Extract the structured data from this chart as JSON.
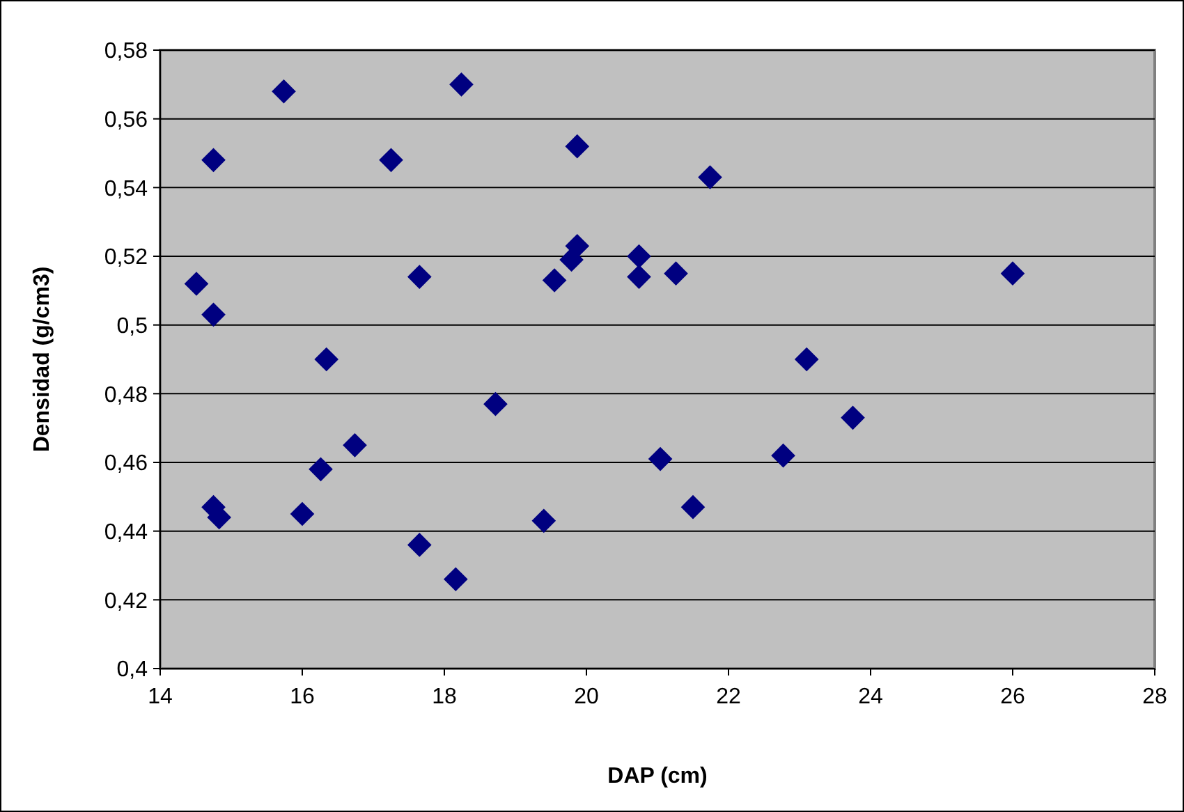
{
  "chart_data": {
    "type": "scatter",
    "xlabel": "DAP (cm)",
    "ylabel": "Densidad (g/cm3)",
    "xlim": [
      14,
      28
    ],
    "xticks": [
      14,
      16,
      18,
      20,
      22,
      24,
      26,
      28
    ],
    "ylim": [
      0.4,
      0.58
    ],
    "yticks": [
      {
        "value": 0.4,
        "label": "0,4"
      },
      {
        "value": 0.42,
        "label": "0,42"
      },
      {
        "value": 0.44,
        "label": "0,44"
      },
      {
        "value": 0.46,
        "label": "0,46"
      },
      {
        "value": 0.48,
        "label": "0,48"
      },
      {
        "value": 0.5,
        "label": "0,5"
      },
      {
        "value": 0.52,
        "label": "0,52"
      },
      {
        "value": 0.54,
        "label": "0,54"
      },
      {
        "value": 0.56,
        "label": "0,56"
      },
      {
        "value": 0.58,
        "label": "0,58"
      }
    ],
    "grid": "y",
    "marker": "diamond",
    "series": [
      {
        "color": "#000080",
        "x": [
          14.51,
          14.75,
          14.75,
          14.75,
          14.83,
          15.74,
          16.0,
          16.26,
          16.34,
          16.74,
          17.25,
          17.65,
          17.65,
          18.16,
          18.24,
          18.72,
          19.4,
          19.55,
          19.79,
          19.87,
          19.87,
          20.74,
          20.74,
          21.04,
          21.26,
          21.5,
          21.74,
          22.77,
          23.1,
          23.75,
          26.0
        ],
        "values": [
          0.512,
          0.548,
          0.503,
          0.447,
          0.444,
          0.568,
          0.445,
          0.458,
          0.49,
          0.465,
          0.548,
          0.514,
          0.436,
          0.426,
          0.57,
          0.477,
          0.443,
          0.513,
          0.519,
          0.523,
          0.552,
          0.52,
          0.514,
          0.461,
          0.515,
          0.447,
          0.543,
          0.462,
          0.49,
          0.473,
          0.515
        ]
      }
    ]
  }
}
